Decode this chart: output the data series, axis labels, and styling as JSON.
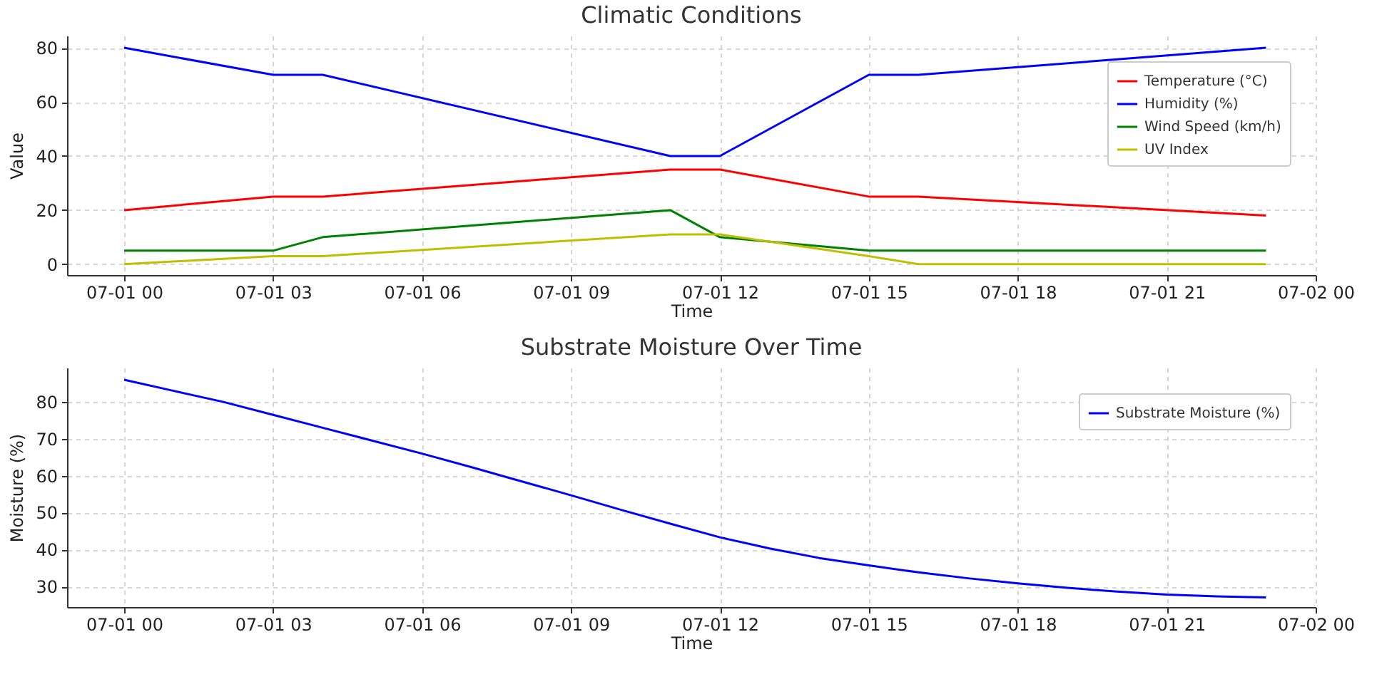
{
  "chart_data": [
    {
      "type": "line",
      "title": "Climatic Conditions",
      "xlabel": "Time",
      "ylabel": "Value",
      "x": [
        "--07-01T00:00",
        "--07-01T03:00",
        "--07-01T04:00",
        "--07-01T11:00",
        "--07-01T12:00",
        "--07-01T15:00",
        "--07-01T16:00",
        "--07-01T23:00"
      ],
      "series": [
        {
          "name": "Temperature (°C)",
          "color": "#ff0000",
          "values": [
            20,
            25,
            25,
            35,
            35,
            25,
            25,
            18
          ]
        },
        {
          "name": "Humidity (%)",
          "color": "#0000ff",
          "values": [
            80,
            70,
            70,
            40,
            40,
            70,
            70,
            80
          ]
        },
        {
          "name": "Wind Speed (km/h)",
          "color": "#008000",
          "values": [
            5,
            5,
            10,
            20,
            10,
            5,
            5,
            5
          ]
        },
        {
          "name": "UV Index",
          "color": "#bfbf00",
          "values": [
            0,
            3,
            3,
            11,
            11,
            3,
            0,
            0
          ]
        }
      ],
      "xlim": [
        "--06-30T22:51",
        "--07-02T00:00"
      ],
      "xticks": [
        {
          "value": "--07-01T00:00",
          "label": "07-01 00"
        },
        {
          "value": "--07-01T03:00",
          "label": "07-01 03"
        },
        {
          "value": "--07-01T06:00",
          "label": "07-01 06"
        },
        {
          "value": "--07-01T09:00",
          "label": "07-01 09"
        },
        {
          "value": "--07-01T12:00",
          "label": "07-01 12"
        },
        {
          "value": "--07-01T15:00",
          "label": "07-01 15"
        },
        {
          "value": "--07-01T18:00",
          "label": "07-01 18"
        },
        {
          "value": "--07-01T21:00",
          "label": "07-01 21"
        },
        {
          "value": "--07-02T00:00",
          "label": "07-02 00"
        }
      ],
      "ylim": [
        -4,
        84.5
      ],
      "yticks": [
        0,
        20,
        40,
        60,
        80
      ],
      "grid": true,
      "legend": "top right"
    },
    {
      "type": "line",
      "title": "Substrate Moisture Over Time",
      "xlabel": "Time",
      "ylabel": "Moisture (%)",
      "x": [
        "--07-01T00:00",
        "--07-01T01:00",
        "--07-01T02:00",
        "--07-01T03:00",
        "--07-01T04:00",
        "--07-01T05:00",
        "--07-01T06:00",
        "--07-01T07:00",
        "--07-01T08:00",
        "--07-01T09:00",
        "--07-01T10:00",
        "--07-01T11:00",
        "--07-01T12:00",
        "--07-01T13:00",
        "--07-01T14:00",
        "--07-01T15:00",
        "--07-01T16:00",
        "--07-01T17:00",
        "--07-01T18:00",
        "--07-01T19:00",
        "--07-01T20:00",
        "--07-01T21:00",
        "--07-01T22:00",
        "--07-01T23:00"
      ],
      "series": [
        {
          "name": "Substrate Moisture (%)",
          "color": "#0000ff",
          "values": [
            86,
            83,
            80,
            76.5,
            73,
            69.5,
            66,
            62.3,
            58.5,
            54.7,
            50.8,
            47,
            43.3,
            40.3,
            37.7,
            35.7,
            33.8,
            32.2,
            30.8,
            29.6,
            28.6,
            27.8,
            27.3,
            27
          ]
        }
      ],
      "xlim": [
        "--06-30T22:51",
        "--07-02T00:00"
      ],
      "xticks": [
        {
          "value": "--07-01T00:00",
          "label": "07-01 00"
        },
        {
          "value": "--07-01T03:00",
          "label": "07-01 03"
        },
        {
          "value": "--07-01T06:00",
          "label": "07-01 06"
        },
        {
          "value": "--07-01T09:00",
          "label": "07-01 09"
        },
        {
          "value": "--07-01T12:00",
          "label": "07-01 12"
        },
        {
          "value": "--07-01T15:00",
          "label": "07-01 15"
        },
        {
          "value": "--07-01T18:00",
          "label": "07-01 18"
        },
        {
          "value": "--07-01T21:00",
          "label": "07-01 21"
        },
        {
          "value": "--07-02T00:00",
          "label": "07-02 00"
        }
      ],
      "ylim": [
        24.4,
        89.3
      ],
      "yticks": [
        30,
        40,
        50,
        60,
        70,
        80
      ],
      "grid": true,
      "legend": "top right"
    }
  ]
}
